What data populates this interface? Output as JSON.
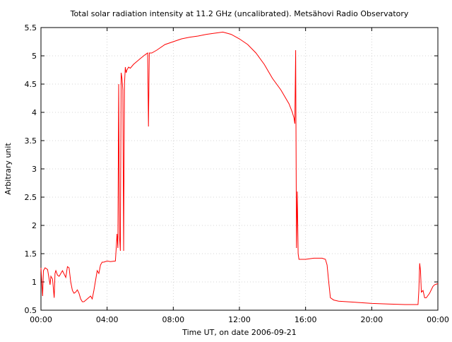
{
  "chart_data": {
    "type": "line",
    "title": "Total solar radiation intensity at 11.2 GHz (uncalibrated). Metsähovi Radio Observatory",
    "xlabel": "Time UT, on date 2006-09-21",
    "ylabel": "Arbitrary unit",
    "xlim": [
      0,
      24
    ],
    "ylim": [
      0.5,
      5.5
    ],
    "grid": true,
    "line_color": "#ff0000",
    "x_ticks": [
      {
        "value": 0,
        "label": "00:00"
      },
      {
        "value": 4,
        "label": "04:00"
      },
      {
        "value": 8,
        "label": "08:00"
      },
      {
        "value": 12,
        "label": "12:00"
      },
      {
        "value": 16,
        "label": "16:00"
      },
      {
        "value": 20,
        "label": "20:00"
      },
      {
        "value": 24,
        "label": "00:00"
      }
    ],
    "y_ticks": [
      {
        "value": 0.5,
        "label": "0.5"
      },
      {
        "value": 1,
        "label": "1"
      },
      {
        "value": 1.5,
        "label": "1.5"
      },
      {
        "value": 2,
        "label": "2"
      },
      {
        "value": 2.5,
        "label": "2.5"
      },
      {
        "value": 3,
        "label": "3"
      },
      {
        "value": 3.5,
        "label": "3.5"
      },
      {
        "value": 4,
        "label": "4"
      },
      {
        "value": 4.5,
        "label": "4.5"
      },
      {
        "value": 5,
        "label": "5"
      },
      {
        "value": 5.5,
        "label": "5.5"
      }
    ],
    "series": [
      {
        "x": [
          0.0,
          0.1,
          0.15,
          0.25,
          0.4,
          0.55,
          0.6,
          0.7,
          0.8,
          0.85,
          0.9,
          1.0,
          1.1,
          1.2,
          1.3,
          1.5,
          1.6,
          1.7,
          1.8,
          1.9,
          2.0,
          2.1,
          2.2,
          2.3,
          2.4,
          2.5,
          2.6,
          2.8,
          3.0,
          3.1,
          3.2,
          3.4,
          3.5,
          3.6,
          3.7,
          3.8,
          4.0,
          4.2,
          4.5,
          4.55,
          4.6,
          4.65,
          4.7,
          4.75,
          4.8,
          4.85,
          4.9,
          4.95,
          5.0,
          5.05,
          5.1,
          5.15,
          5.2,
          5.3,
          5.4,
          5.6,
          5.8,
          6.0,
          6.3,
          6.45,
          6.5,
          6.55,
          6.7,
          7.0,
          7.5,
          8.0,
          8.5,
          9.0,
          9.5,
          10.0,
          10.5,
          11.0,
          11.5,
          12.0,
          12.5,
          13.0,
          13.5,
          14.0,
          14.5,
          15.0,
          15.2,
          15.3,
          15.35,
          15.4,
          15.45,
          15.5,
          15.55,
          15.6,
          16.0,
          16.5,
          17.0,
          17.2,
          17.3,
          17.4,
          17.5,
          17.7,
          18.0,
          19.0,
          20.0,
          21.0,
          22.0,
          22.5,
          22.8,
          22.85,
          22.9,
          22.95,
          23.0,
          23.1,
          23.2,
          23.3,
          23.5,
          23.7,
          23.8,
          24.0
        ],
        "y": [
          1.25,
          0.75,
          1.2,
          1.25,
          1.22,
          0.95,
          1.1,
          1.05,
          0.72,
          1.15,
          1.2,
          1.12,
          1.1,
          1.15,
          1.2,
          1.08,
          1.27,
          1.25,
          1.0,
          0.85,
          0.8,
          0.82,
          0.86,
          0.8,
          0.7,
          0.65,
          0.65,
          0.7,
          0.75,
          0.7,
          0.85,
          1.2,
          1.15,
          1.3,
          1.35,
          1.35,
          1.37,
          1.36,
          1.37,
          1.6,
          1.85,
          1.6,
          4.5,
          1.8,
          1.55,
          4.7,
          4.6,
          4.4,
          1.55,
          4.5,
          4.8,
          4.7,
          4.75,
          4.8,
          4.78,
          4.85,
          4.9,
          4.95,
          5.02,
          5.05,
          3.75,
          5.05,
          5.05,
          5.1,
          5.2,
          5.25,
          5.3,
          5.33,
          5.35,
          5.38,
          5.4,
          5.42,
          5.38,
          5.3,
          5.2,
          5.05,
          4.85,
          4.6,
          4.4,
          4.15,
          4.0,
          3.9,
          3.8,
          5.1,
          1.6,
          2.6,
          1.5,
          1.4,
          1.4,
          1.42,
          1.42,
          1.4,
          1.3,
          1.0,
          0.72,
          0.68,
          0.66,
          0.64,
          0.62,
          0.61,
          0.6,
          0.6,
          0.6,
          0.85,
          1.33,
          1.2,
          0.82,
          0.85,
          0.72,
          0.72,
          0.8,
          0.92,
          0.95,
          0.97
        ]
      }
    ]
  }
}
